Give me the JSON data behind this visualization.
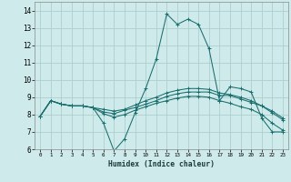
{
  "xlabel": "Humidex (Indice chaleur)",
  "background_color": "#ceeaea",
  "grid_color": "#aecece",
  "line_color": "#1a6e6e",
  "xlim": [
    -0.5,
    23.5
  ],
  "ylim": [
    6,
    14.5
  ],
  "yticks": [
    6,
    7,
    8,
    9,
    10,
    11,
    12,
    13,
    14
  ],
  "xticks": [
    0,
    1,
    2,
    3,
    4,
    5,
    6,
    7,
    8,
    9,
    10,
    11,
    12,
    13,
    14,
    15,
    16,
    17,
    18,
    19,
    20,
    21,
    22,
    23
  ],
  "lines": [
    [
      7.9,
      8.8,
      8.6,
      8.5,
      8.5,
      8.4,
      7.5,
      5.9,
      6.6,
      8.1,
      9.5,
      11.2,
      13.8,
      13.2,
      13.5,
      13.2,
      11.8,
      8.8,
      9.6,
      9.5,
      9.3,
      7.8,
      7.0,
      7.0
    ],
    [
      7.9,
      8.8,
      8.6,
      8.5,
      8.5,
      8.4,
      8.15,
      8.05,
      8.25,
      8.4,
      8.6,
      8.8,
      9.05,
      9.2,
      9.3,
      9.3,
      9.3,
      9.1,
      9.1,
      8.9,
      8.7,
      8.5,
      8.1,
      7.7
    ],
    [
      7.9,
      8.8,
      8.6,
      8.5,
      8.5,
      8.4,
      8.3,
      8.2,
      8.3,
      8.55,
      8.8,
      9.0,
      9.25,
      9.4,
      9.5,
      9.5,
      9.45,
      9.25,
      9.15,
      9.0,
      8.8,
      8.5,
      8.2,
      7.8
    ],
    [
      7.9,
      8.8,
      8.6,
      8.5,
      8.5,
      8.4,
      8.05,
      7.85,
      8.0,
      8.25,
      8.45,
      8.65,
      8.8,
      8.95,
      9.05,
      9.05,
      9.0,
      8.8,
      8.65,
      8.45,
      8.3,
      8.0,
      7.5,
      7.1
    ]
  ]
}
